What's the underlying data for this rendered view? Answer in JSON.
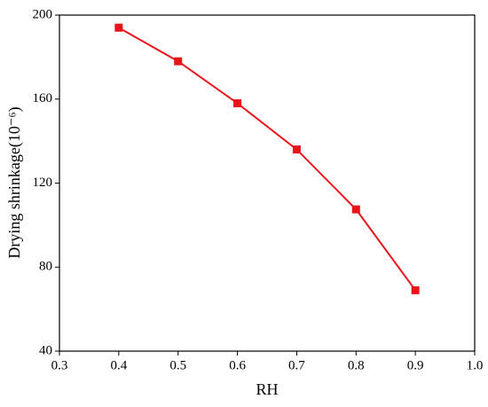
{
  "chart_data": {
    "type": "line",
    "x_label": "RH",
    "y_label": "Drying shrinkage(10⁻⁶)",
    "x": [
      0.4,
      0.5,
      0.6,
      0.7,
      0.8,
      0.9
    ],
    "series": [
      {
        "color": "#e8141a",
        "values": [
          194,
          178,
          158,
          136,
          107.5,
          69
        ]
      }
    ],
    "xlim": [
      0.3,
      1
    ],
    "xticks": [
      0.3,
      0.4,
      0.5,
      0.6,
      0.7,
      0.8,
      0.9,
      {
        "value": 1,
        "label": "1.0"
      }
    ],
    "ylim": [
      40,
      200
    ],
    "yticks": [
      40,
      80,
      120,
      160,
      200
    ],
    "marker": "square"
  }
}
